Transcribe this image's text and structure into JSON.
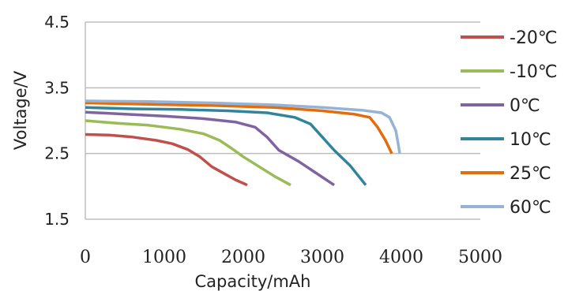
{
  "chart_data": {
    "type": "line",
    "xlabel": "Capacity/mAh",
    "ylabel": "Voltage/V",
    "xlim": [
      0,
      5000
    ],
    "ylim": [
      1.5,
      4.5
    ],
    "xticks": [
      "0",
      "1000",
      "2000",
      "3000",
      "4000",
      "5000"
    ],
    "yticks": [
      "1.5",
      "2.5",
      "3.5",
      "4.5"
    ],
    "grid": "horizontal",
    "legend_position": "right",
    "series": [
      {
        "name": "-20℃",
        "color": "#c0504d",
        "points": [
          [
            0,
            2.79
          ],
          [
            300,
            2.78
          ],
          [
            600,
            2.75
          ],
          [
            900,
            2.7
          ],
          [
            1100,
            2.65
          ],
          [
            1300,
            2.56
          ],
          [
            1450,
            2.45
          ],
          [
            1600,
            2.3
          ],
          [
            1750,
            2.2
          ],
          [
            1900,
            2.1
          ],
          [
            2050,
            2.02
          ]
        ]
      },
      {
        "name": "-10℃",
        "color": "#9bbb59",
        "points": [
          [
            0,
            3.0
          ],
          [
            400,
            2.96
          ],
          [
            800,
            2.93
          ],
          [
            1200,
            2.87
          ],
          [
            1500,
            2.8
          ],
          [
            1700,
            2.7
          ],
          [
            1850,
            2.58
          ],
          [
            2000,
            2.45
          ],
          [
            2200,
            2.3
          ],
          [
            2400,
            2.15
          ],
          [
            2600,
            2.02
          ]
        ]
      },
      {
        "name": "0℃",
        "color": "#8064a2",
        "points": [
          [
            0,
            3.13
          ],
          [
            500,
            3.1
          ],
          [
            1000,
            3.07
          ],
          [
            1500,
            3.03
          ],
          [
            1900,
            2.98
          ],
          [
            2150,
            2.9
          ],
          [
            2300,
            2.75
          ],
          [
            2450,
            2.55
          ],
          [
            2700,
            2.38
          ],
          [
            2900,
            2.22
          ],
          [
            3150,
            2.02
          ]
        ]
      },
      {
        "name": "10℃",
        "color": "#31849b",
        "points": [
          [
            0,
            3.2
          ],
          [
            600,
            3.18
          ],
          [
            1200,
            3.17
          ],
          [
            1800,
            3.15
          ],
          [
            2300,
            3.12
          ],
          [
            2650,
            3.05
          ],
          [
            2850,
            2.95
          ],
          [
            3000,
            2.75
          ],
          [
            3150,
            2.55
          ],
          [
            3350,
            2.32
          ],
          [
            3550,
            2.02
          ]
        ]
      },
      {
        "name": "25℃",
        "color": "#e46c0a",
        "points": [
          [
            0,
            3.27
          ],
          [
            800,
            3.25
          ],
          [
            1600,
            3.23
          ],
          [
            2400,
            3.2
          ],
          [
            3000,
            3.15
          ],
          [
            3400,
            3.1
          ],
          [
            3600,
            3.05
          ],
          [
            3700,
            2.9
          ],
          [
            3800,
            2.7
          ],
          [
            3880,
            2.5
          ]
        ]
      },
      {
        "name": "60℃",
        "color": "#95b3d7",
        "points": [
          [
            0,
            3.3
          ],
          [
            800,
            3.29
          ],
          [
            1600,
            3.27
          ],
          [
            2400,
            3.24
          ],
          [
            3000,
            3.2
          ],
          [
            3500,
            3.16
          ],
          [
            3750,
            3.12
          ],
          [
            3850,
            3.05
          ],
          [
            3930,
            2.85
          ],
          [
            3960,
            2.65
          ],
          [
            3980,
            2.5
          ]
        ]
      }
    ]
  }
}
